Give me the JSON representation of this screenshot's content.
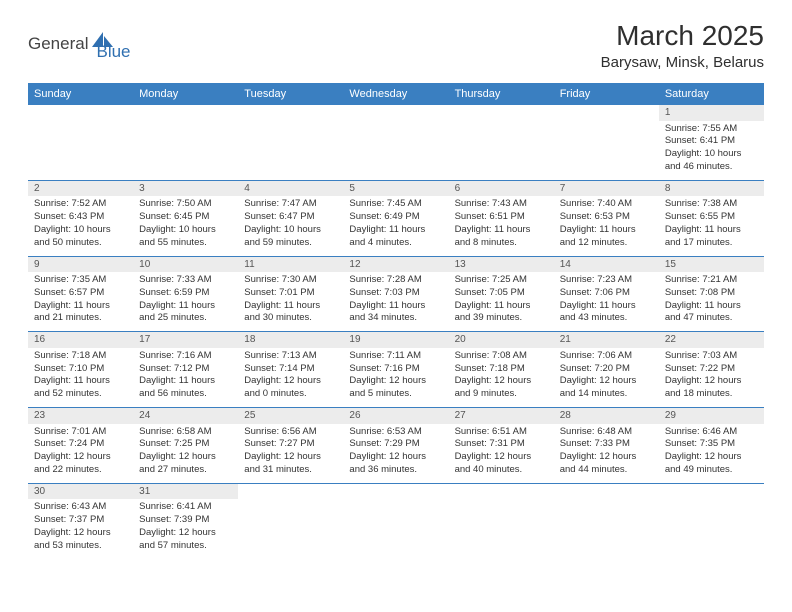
{
  "logo": {
    "part1": "General",
    "part2": "Blue"
  },
  "title": "March 2025",
  "location": "Barysaw, Minsk, Belarus",
  "dayHeaders": [
    "Sunday",
    "Monday",
    "Tuesday",
    "Wednesday",
    "Thursday",
    "Friday",
    "Saturday"
  ],
  "colors": {
    "headerBg": "#3a7fc1",
    "headerText": "#ffffff",
    "rowBorder": "#3a7fc1",
    "dayNumBg": "#ececec",
    "logoBlue": "#2f6fb0"
  },
  "weeks": [
    [
      null,
      null,
      null,
      null,
      null,
      null,
      {
        "n": "1",
        "sunrise": "Sunrise: 7:55 AM",
        "sunset": "Sunset: 6:41 PM",
        "day1": "Daylight: 10 hours",
        "day2": "and 46 minutes."
      }
    ],
    [
      {
        "n": "2",
        "sunrise": "Sunrise: 7:52 AM",
        "sunset": "Sunset: 6:43 PM",
        "day1": "Daylight: 10 hours",
        "day2": "and 50 minutes."
      },
      {
        "n": "3",
        "sunrise": "Sunrise: 7:50 AM",
        "sunset": "Sunset: 6:45 PM",
        "day1": "Daylight: 10 hours",
        "day2": "and 55 minutes."
      },
      {
        "n": "4",
        "sunrise": "Sunrise: 7:47 AM",
        "sunset": "Sunset: 6:47 PM",
        "day1": "Daylight: 10 hours",
        "day2": "and 59 minutes."
      },
      {
        "n": "5",
        "sunrise": "Sunrise: 7:45 AM",
        "sunset": "Sunset: 6:49 PM",
        "day1": "Daylight: 11 hours",
        "day2": "and 4 minutes."
      },
      {
        "n": "6",
        "sunrise": "Sunrise: 7:43 AM",
        "sunset": "Sunset: 6:51 PM",
        "day1": "Daylight: 11 hours",
        "day2": "and 8 minutes."
      },
      {
        "n": "7",
        "sunrise": "Sunrise: 7:40 AM",
        "sunset": "Sunset: 6:53 PM",
        "day1": "Daylight: 11 hours",
        "day2": "and 12 minutes."
      },
      {
        "n": "8",
        "sunrise": "Sunrise: 7:38 AM",
        "sunset": "Sunset: 6:55 PM",
        "day1": "Daylight: 11 hours",
        "day2": "and 17 minutes."
      }
    ],
    [
      {
        "n": "9",
        "sunrise": "Sunrise: 7:35 AM",
        "sunset": "Sunset: 6:57 PM",
        "day1": "Daylight: 11 hours",
        "day2": "and 21 minutes."
      },
      {
        "n": "10",
        "sunrise": "Sunrise: 7:33 AM",
        "sunset": "Sunset: 6:59 PM",
        "day1": "Daylight: 11 hours",
        "day2": "and 25 minutes."
      },
      {
        "n": "11",
        "sunrise": "Sunrise: 7:30 AM",
        "sunset": "Sunset: 7:01 PM",
        "day1": "Daylight: 11 hours",
        "day2": "and 30 minutes."
      },
      {
        "n": "12",
        "sunrise": "Sunrise: 7:28 AM",
        "sunset": "Sunset: 7:03 PM",
        "day1": "Daylight: 11 hours",
        "day2": "and 34 minutes."
      },
      {
        "n": "13",
        "sunrise": "Sunrise: 7:25 AM",
        "sunset": "Sunset: 7:05 PM",
        "day1": "Daylight: 11 hours",
        "day2": "and 39 minutes."
      },
      {
        "n": "14",
        "sunrise": "Sunrise: 7:23 AM",
        "sunset": "Sunset: 7:06 PM",
        "day1": "Daylight: 11 hours",
        "day2": "and 43 minutes."
      },
      {
        "n": "15",
        "sunrise": "Sunrise: 7:21 AM",
        "sunset": "Sunset: 7:08 PM",
        "day1": "Daylight: 11 hours",
        "day2": "and 47 minutes."
      }
    ],
    [
      {
        "n": "16",
        "sunrise": "Sunrise: 7:18 AM",
        "sunset": "Sunset: 7:10 PM",
        "day1": "Daylight: 11 hours",
        "day2": "and 52 minutes."
      },
      {
        "n": "17",
        "sunrise": "Sunrise: 7:16 AM",
        "sunset": "Sunset: 7:12 PM",
        "day1": "Daylight: 11 hours",
        "day2": "and 56 minutes."
      },
      {
        "n": "18",
        "sunrise": "Sunrise: 7:13 AM",
        "sunset": "Sunset: 7:14 PM",
        "day1": "Daylight: 12 hours",
        "day2": "and 0 minutes."
      },
      {
        "n": "19",
        "sunrise": "Sunrise: 7:11 AM",
        "sunset": "Sunset: 7:16 PM",
        "day1": "Daylight: 12 hours",
        "day2": "and 5 minutes."
      },
      {
        "n": "20",
        "sunrise": "Sunrise: 7:08 AM",
        "sunset": "Sunset: 7:18 PM",
        "day1": "Daylight: 12 hours",
        "day2": "and 9 minutes."
      },
      {
        "n": "21",
        "sunrise": "Sunrise: 7:06 AM",
        "sunset": "Sunset: 7:20 PM",
        "day1": "Daylight: 12 hours",
        "day2": "and 14 minutes."
      },
      {
        "n": "22",
        "sunrise": "Sunrise: 7:03 AM",
        "sunset": "Sunset: 7:22 PM",
        "day1": "Daylight: 12 hours",
        "day2": "and 18 minutes."
      }
    ],
    [
      {
        "n": "23",
        "sunrise": "Sunrise: 7:01 AM",
        "sunset": "Sunset: 7:24 PM",
        "day1": "Daylight: 12 hours",
        "day2": "and 22 minutes."
      },
      {
        "n": "24",
        "sunrise": "Sunrise: 6:58 AM",
        "sunset": "Sunset: 7:25 PM",
        "day1": "Daylight: 12 hours",
        "day2": "and 27 minutes."
      },
      {
        "n": "25",
        "sunrise": "Sunrise: 6:56 AM",
        "sunset": "Sunset: 7:27 PM",
        "day1": "Daylight: 12 hours",
        "day2": "and 31 minutes."
      },
      {
        "n": "26",
        "sunrise": "Sunrise: 6:53 AM",
        "sunset": "Sunset: 7:29 PM",
        "day1": "Daylight: 12 hours",
        "day2": "and 36 minutes."
      },
      {
        "n": "27",
        "sunrise": "Sunrise: 6:51 AM",
        "sunset": "Sunset: 7:31 PM",
        "day1": "Daylight: 12 hours",
        "day2": "and 40 minutes."
      },
      {
        "n": "28",
        "sunrise": "Sunrise: 6:48 AM",
        "sunset": "Sunset: 7:33 PM",
        "day1": "Daylight: 12 hours",
        "day2": "and 44 minutes."
      },
      {
        "n": "29",
        "sunrise": "Sunrise: 6:46 AM",
        "sunset": "Sunset: 7:35 PM",
        "day1": "Daylight: 12 hours",
        "day2": "and 49 minutes."
      }
    ],
    [
      {
        "n": "30",
        "sunrise": "Sunrise: 6:43 AM",
        "sunset": "Sunset: 7:37 PM",
        "day1": "Daylight: 12 hours",
        "day2": "and 53 minutes."
      },
      {
        "n": "31",
        "sunrise": "Sunrise: 6:41 AM",
        "sunset": "Sunset: 7:39 PM",
        "day1": "Daylight: 12 hours",
        "day2": "and 57 minutes."
      },
      null,
      null,
      null,
      null,
      null
    ]
  ]
}
